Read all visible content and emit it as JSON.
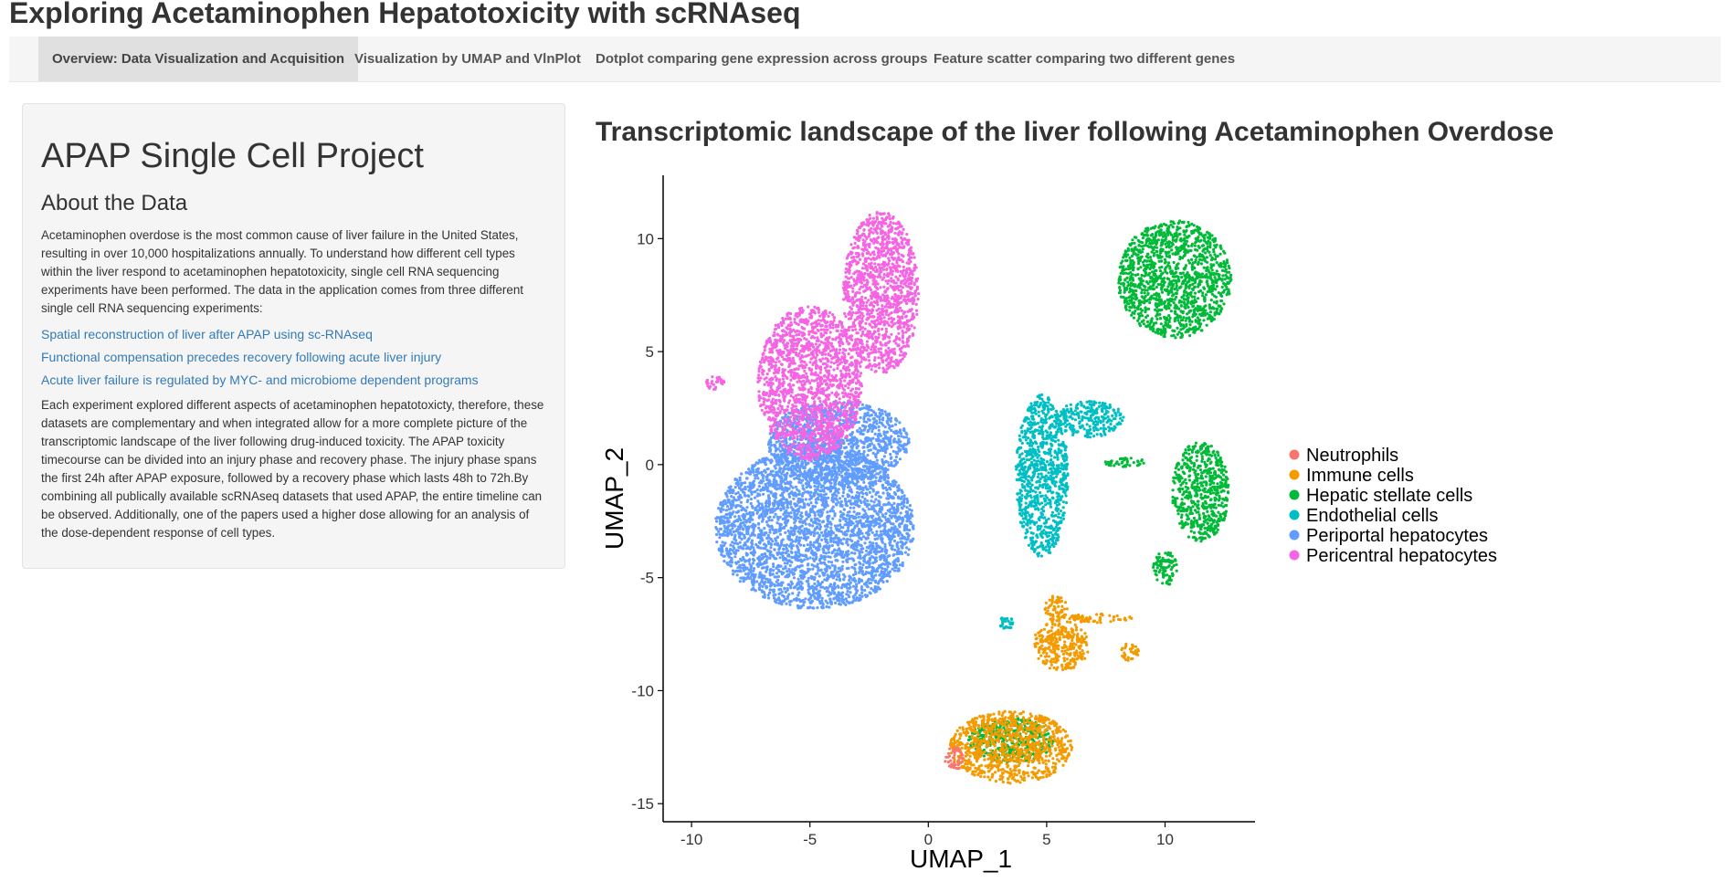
{
  "app": {
    "title": "Exploring Acetaminophen Hepatotoxicity with scRNAseq"
  },
  "tabs": [
    {
      "label": "Overview: Data Visualization and Acquisition",
      "active": true
    },
    {
      "label": "Visualization by UMAP and VlnPlot",
      "active": false
    },
    {
      "label": "Dotplot comparing gene expression across groups",
      "active": false
    },
    {
      "label": "Feature scatter comparing two different genes",
      "active": false
    }
  ],
  "sidebar": {
    "project_title": "APAP Single Cell Project",
    "about_heading": "About the Data",
    "intro_text": "Acetaminophen overdose is the most common cause of liver failure in the United States, resulting in over 10,000 hospitalizations annually. To understand how different cell types within the liver respond to acetaminophen hepatotoxicity, single cell RNA sequencing experiments have been performed. The data in the application comes from three different single cell RNA sequencing experiments:",
    "links": [
      "Spatial reconstruction of liver after APAP using sc-RNAseq",
      "Functional compensation precedes recovery following acute liver injury",
      "Acute liver failure is regulated by MYC- and microbiome dependent programs"
    ],
    "detail_text": "Each experiment explored different aspects of acetaminophen hepatotoxicty, therefore, these datasets are complementary and when integrated allow for a more complete picture of the transcriptomic landscape of the liver following drug-induced toxicity. The APAP toxicity timecourse can be divided into an injury phase and recovery phase. The injury phase spans the first 24h after APAP exposure, followed by a recovery phase which lasts 48h to 72h.By combining all publically available scRNAseq datasets that used APAP, the entire timeline can be observed. Additionally, one of the papers used a higher dose allowing for an analysis of the dose-dependent response of cell types."
  },
  "chart_data": {
    "type": "scatter",
    "title": "Transcriptomic landscape of the liver following Acetaminophen Overdose",
    "xlabel": "UMAP_1",
    "ylabel": "UMAP_2",
    "xlim": [
      -11.2,
      13.8
    ],
    "ylim": [
      -15.8,
      12.8
    ],
    "xticks": [
      -10,
      -5,
      0,
      5,
      10
    ],
    "yticks": [
      10,
      5,
      0,
      -5,
      -10,
      -15
    ],
    "grid": false,
    "legend_position": "right",
    "series": [
      {
        "name": "Neutrophils",
        "color": "#F8766D",
        "clusters": [
          {
            "cx": 1.1,
            "cy": -13.0,
            "rx": 0.4,
            "ry": 0.5
          }
        ]
      },
      {
        "name": "Immune cells",
        "color": "#F39B00",
        "clusters": [
          {
            "cx": 3.5,
            "cy": -12.5,
            "rx": 2.6,
            "ry": 1.6
          },
          {
            "cx": 5.6,
            "cy": -8.0,
            "rx": 1.2,
            "ry": 1.1
          },
          {
            "cx": 5.4,
            "cy": -6.4,
            "rx": 0.5,
            "ry": 0.6
          },
          {
            "cx": 7.2,
            "cy": -6.8,
            "rx": 1.4,
            "ry": 0.2
          },
          {
            "cx": 8.5,
            "cy": -8.3,
            "rx": 0.4,
            "ry": 0.4
          }
        ]
      },
      {
        "name": "Hepatic stellate cells",
        "color": "#00BA38",
        "clusters": [
          {
            "cx": 10.4,
            "cy": 8.2,
            "rx": 2.4,
            "ry": 2.6
          },
          {
            "cx": 11.5,
            "cy": -1.2,
            "rx": 1.2,
            "ry": 2.2
          },
          {
            "cx": 10.0,
            "cy": -4.6,
            "rx": 0.5,
            "ry": 0.8
          },
          {
            "cx": 8.3,
            "cy": 0.1,
            "rx": 0.9,
            "ry": 0.2
          },
          {
            "cx": 3.5,
            "cy": -12.2,
            "rx": 1.8,
            "ry": 1.0
          }
        ]
      },
      {
        "name": "Endothelial cells",
        "color": "#00BFC4",
        "clusters": [
          {
            "cx": 4.8,
            "cy": -0.5,
            "rx": 1.1,
            "ry": 3.6
          },
          {
            "cx": 6.8,
            "cy": 2.0,
            "rx": 1.5,
            "ry": 0.8
          },
          {
            "cx": 3.3,
            "cy": -7.0,
            "rx": 0.3,
            "ry": 0.3
          }
        ]
      },
      {
        "name": "Periportal hepatocytes",
        "color": "#619CFF",
        "clusters": [
          {
            "cx": -4.8,
            "cy": -2.8,
            "rx": 4.2,
            "ry": 3.6
          },
          {
            "cx": -3.8,
            "cy": 1.0,
            "rx": 3.0,
            "ry": 1.8
          }
        ]
      },
      {
        "name": "Pericentral hepatocytes",
        "color": "#F564E3",
        "clusters": [
          {
            "cx": -5.0,
            "cy": 3.6,
            "rx": 2.2,
            "ry": 3.4
          },
          {
            "cx": -2.0,
            "cy": 7.6,
            "rx": 1.6,
            "ry": 3.6
          },
          {
            "cx": -9.0,
            "cy": 3.6,
            "rx": 0.4,
            "ry": 0.3
          }
        ]
      }
    ]
  }
}
